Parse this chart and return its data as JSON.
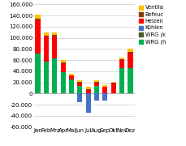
{
  "months": [
    "Jan",
    "Feb",
    "Mrz",
    "Apr",
    "Mai",
    "Jun",
    "Jul",
    "Aug",
    "Sep",
    "Okt",
    "Nov",
    "Dez"
  ],
  "series": {
    "WRG_h": [
      72000,
      57000,
      63000,
      39000,
      25000,
      13000,
      0,
      13000,
      0,
      0,
      45000,
      45000
    ],
    "WRG_k": [
      0,
      0,
      0,
      0,
      0,
      0,
      0,
      0,
      0,
      0,
      0,
      0
    ],
    "Kuhlen": [
      0,
      0,
      0,
      0,
      0,
      -15000,
      -35000,
      -12000,
      -12000,
      0,
      0,
      0
    ],
    "Heizen": [
      60000,
      45000,
      40000,
      15000,
      7000,
      7000,
      7000,
      7000,
      12000,
      18000,
      15000,
      28000
    ],
    "Befeuch": [
      2000,
      2000,
      2000,
      1500,
      1000,
      500,
      500,
      500,
      500,
      1000,
      2000,
      2000
    ],
    "Ventila": [
      7000,
      5000,
      5000,
      5000,
      3000,
      3000,
      4000,
      3000,
      3000,
      2000,
      3000,
      5000
    ]
  },
  "colors": {
    "WRG_h": "#00B050",
    "WRG_k": "#4E5A28",
    "Kuhlen": "#4472C4",
    "Heizen": "#FF0000",
    "Befeuch": "#843C0C",
    "Ventila": "#FFC000"
  },
  "legend_labels": {
    "Ventila": "Ventila",
    "Befeuch": "Befeuc",
    "Heizen": "Heizen",
    "Kuhlen": "Kühlen",
    "WRG_k": "WRG (k",
    "WRG_h": "WRG (h"
  },
  "ylim": [
    -60000,
    160000
  ],
  "yticks": [
    -60000,
    -40000,
    -20000,
    0,
    20000,
    40000,
    60000,
    80000,
    100000,
    120000,
    140000,
    160000
  ],
  "background_color": "#ffffff"
}
